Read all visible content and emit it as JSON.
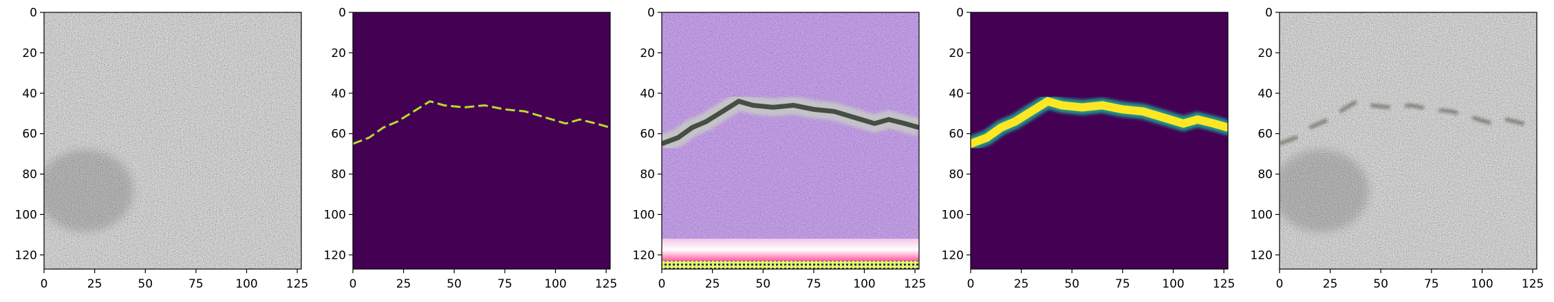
{
  "figure": {
    "panel_count": 5,
    "axis_range": {
      "x": [
        0,
        127
      ],
      "y": [
        0,
        127
      ]
    },
    "x_ticks": [
      "0",
      "25",
      "50",
      "75",
      "100",
      "125"
    ],
    "y_ticks": [
      "0",
      "20",
      "40",
      "60",
      "80",
      "100",
      "120"
    ],
    "panels": [
      {
        "name": "input-texture",
        "content": "grayscale concrete texture"
      },
      {
        "name": "crack-mask",
        "content": "thin crack mask on purple background"
      },
      {
        "name": "generated-image",
        "content": "purple noisy generated image with crack and bright bottom band"
      },
      {
        "name": "crack-heatmap",
        "content": "smooth crack band heatmap"
      },
      {
        "name": "output-texture",
        "content": "grayscale texture with faint crack"
      }
    ],
    "colors": {
      "mask_background": "#440154",
      "mask_crack": "#b5de2b",
      "heat_mid": "#21918c",
      "heat_high": "#fde725",
      "generated_base": "#8d6fb0",
      "texture_base": "#9a9a9a"
    }
  }
}
